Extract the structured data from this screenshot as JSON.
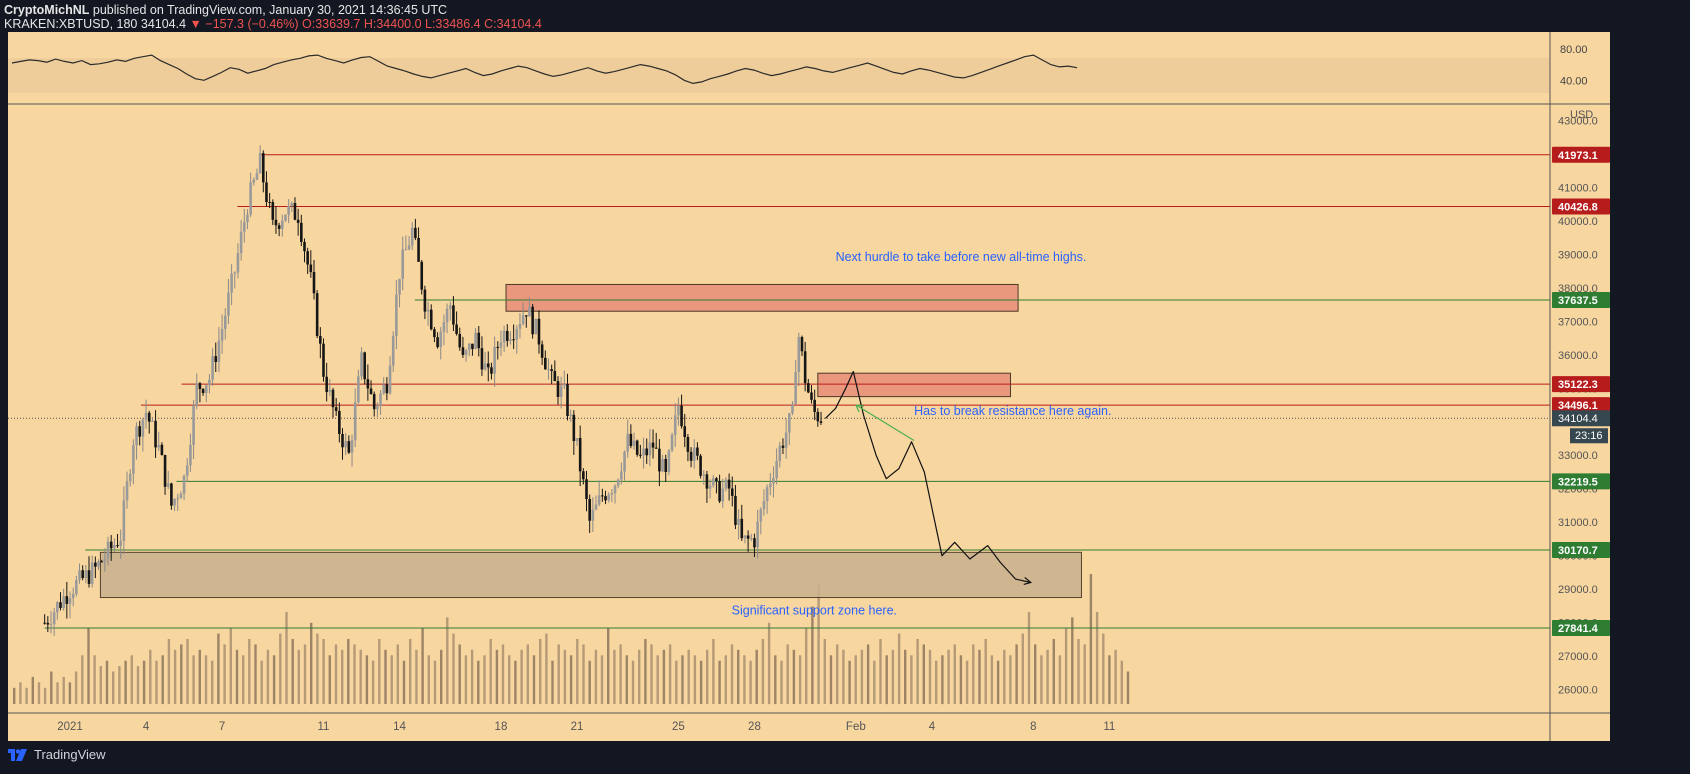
{
  "header": {
    "line1_prefix": "CryptoMichNL",
    "line1_rest": " published on TradingView.com, January 30, 2021 14:36:45 UTC",
    "symbol": "KRAKEN:XBTUSD, 180",
    "last": "34104.4",
    "change": "▼ −157.3 (−0.46%)",
    "ohlc": "O:33639.7 H:34400.0 L:33486.4 C:34104.4"
  },
  "footer": {
    "brand": "TradingView",
    "brand_icon": "tradingview-logo-icon"
  },
  "colors": {
    "background": "#f8d6a0",
    "candle": "#161616",
    "resistance": "#b71c1c",
    "support": "#2e7d32",
    "resistance_box": "#e8917a",
    "support_box": "#c9b08e",
    "annotation_text": "#2962ff"
  },
  "chart_data": {
    "type": "candlestick",
    "symbol": "KRAKEN:XBTUSD",
    "timeframe": "180",
    "y_axis": {
      "unit": "USD",
      "ticks": [
        "26000.0",
        "27000.0",
        "28000.0",
        "29000.0",
        "30000.0",
        "31000.0",
        "32000.0",
        "33000.0",
        "34000.0",
        "35000.0",
        "36000.0",
        "37000.0",
        "38000.0",
        "39000.0",
        "40000.0",
        "41000.0",
        "42000.0",
        "43000.0"
      ],
      "ylim": [
        26000,
        43000
      ]
    },
    "x_axis": {
      "ticks": [
        {
          "label": "2021",
          "day": 1
        },
        {
          "label": "4",
          "day": 4
        },
        {
          "label": "7",
          "day": 7
        },
        {
          "label": "11",
          "day": 11
        },
        {
          "label": "14",
          "day": 14
        },
        {
          "label": "18",
          "day": 18
        },
        {
          "label": "21",
          "day": 21
        },
        {
          "label": "25",
          "day": 25
        },
        {
          "label": "28",
          "day": 28
        },
        {
          "label": "Feb",
          "day": 32
        },
        {
          "label": "4",
          "day": 35
        },
        {
          "label": "8",
          "day": 39
        },
        {
          "label": "11",
          "day": 42
        }
      ]
    },
    "price_path": [
      [
        0,
        28000
      ],
      [
        1,
        29000
      ],
      [
        2,
        29600
      ],
      [
        3,
        30600
      ],
      [
        3.5,
        33500
      ],
      [
        4,
        34300
      ],
      [
        4.5,
        33200
      ],
      [
        5,
        31500
      ],
      [
        5.5,
        32300
      ],
      [
        6,
        35000
      ],
      [
        6.5,
        35300
      ],
      [
        7,
        36800
      ],
      [
        7.5,
        38500
      ],
      [
        8,
        40500
      ],
      [
        8.5,
        41700
      ],
      [
        9,
        39800
      ],
      [
        9.5,
        40300
      ],
      [
        10,
        40200
      ],
      [
        10.5,
        38200
      ],
      [
        11,
        35500
      ],
      [
        11.5,
        34000
      ],
      [
        12,
        33000
      ],
      [
        12.5,
        35800
      ],
      [
        13,
        34400
      ],
      [
        13.5,
        35200
      ],
      [
        14,
        38500
      ],
      [
        14.5,
        39700
      ],
      [
        15,
        37600
      ],
      [
        15.5,
        36500
      ],
      [
        16,
        37500
      ],
      [
        16.5,
        35800
      ],
      [
        17,
        36500
      ],
      [
        17.5,
        35300
      ],
      [
        18,
        36600
      ],
      [
        18.5,
        36800
      ],
      [
        19,
        37400
      ],
      [
        19.5,
        36500
      ],
      [
        20,
        35200
      ],
      [
        20.5,
        34800
      ],
      [
        21,
        33200
      ],
      [
        21.5,
        31000
      ],
      [
        22,
        31800
      ],
      [
        22.5,
        32200
      ],
      [
        23,
        33400
      ],
      [
        23.5,
        32900
      ],
      [
        24,
        33300
      ],
      [
        24.5,
        32300
      ],
      [
        25,
        34500
      ],
      [
        25.5,
        33100
      ],
      [
        26,
        32500
      ],
      [
        26.5,
        31900
      ],
      [
        27,
        32000
      ],
      [
        27.5,
        30400
      ],
      [
        28,
        30500
      ],
      [
        28.5,
        32000
      ],
      [
        29,
        33200
      ],
      [
        29.5,
        34200
      ],
      [
        29.7,
        36800
      ],
      [
        30,
        35300
      ],
      [
        30.3,
        34300
      ],
      [
        30.7,
        34100
      ]
    ],
    "volume": [
      3,
      4,
      3,
      5,
      4,
      3,
      6,
      4,
      5,
      4,
      6,
      9,
      14,
      9,
      7,
      8,
      6,
      7,
      8,
      9,
      7,
      8,
      10,
      8,
      9,
      12,
      10,
      11,
      12,
      9,
      10,
      9,
      8,
      13,
      11,
      14,
      10,
      9,
      12,
      11,
      8,
      10,
      9,
      13,
      17,
      12,
      10,
      11,
      15,
      13,
      12,
      9,
      11,
      10,
      12,
      11,
      10,
      9,
      8,
      12,
      10,
      9,
      11,
      8,
      12,
      10,
      14,
      9,
      8,
      10,
      16,
      13,
      11,
      9,
      10,
      8,
      9,
      12,
      10,
      11,
      9,
      8,
      10,
      11,
      9,
      12,
      13,
      8,
      11,
      10,
      9,
      12,
      11,
      8,
      10,
      9,
      14,
      10,
      11,
      9,
      8,
      10,
      12,
      11,
      9,
      10,
      11,
      8,
      9,
      10,
      9,
      8,
      10,
      12,
      8,
      9,
      11,
      10,
      9,
      8,
      10,
      12,
      15,
      9,
      8,
      11,
      10,
      9,
      14,
      18,
      22,
      12,
      9,
      11,
      10,
      8,
      9,
      10,
      11,
      8,
      12,
      9,
      10,
      13,
      10,
      9,
      12,
      11,
      10,
      8,
      9,
      10,
      11,
      9,
      8,
      11,
      10,
      12,
      9,
      8,
      10,
      9,
      11,
      13,
      17,
      11,
      9,
      10,
      12,
      9,
      14,
      16,
      12,
      11,
      24,
      17,
      13,
      9,
      10,
      8,
      6
    ],
    "vol_max": 24,
    "levels": [
      {
        "price": "41973.1",
        "value": 41973.1,
        "kind": "resistance",
        "from_day": 8.5
      },
      {
        "price": "40426.8",
        "value": 40426.8,
        "kind": "resistance",
        "from_day": 7.6
      },
      {
        "price": "37637.5",
        "value": 37637.5,
        "kind": "support",
        "from_day": 14.6
      },
      {
        "price": "35122.3",
        "value": 35122.3,
        "kind": "resistance",
        "from_day": 5.4
      },
      {
        "price": "34496.1",
        "value": 34496.1,
        "kind": "resistance",
        "from_day": 3.8
      },
      {
        "price": "32219.5",
        "value": 32219.5,
        "kind": "support",
        "from_day": 5.2
      },
      {
        "price": "30170.7",
        "value": 30170.7,
        "kind": "support",
        "from_day": 1.6
      },
      {
        "price": "27841.4",
        "value": 27841.4,
        "kind": "support",
        "from_day": 0
      }
    ],
    "current_price": {
      "value": 34104.4,
      "label": "34104.4",
      "timer": "23:16"
    },
    "zones": [
      {
        "kind": "resistance",
        "from_day": 18.2,
        "to_day": 38.4,
        "low": 37300,
        "high": 38100
      },
      {
        "kind": "resistance",
        "from_day": 30.5,
        "to_day": 38.1,
        "low": 34750,
        "high": 35450
      },
      {
        "kind": "support",
        "from_day": 2.2,
        "to_day": 40.9,
        "low": 28750,
        "high": 30100
      }
    ],
    "projection_path": [
      [
        30.8,
        34100
      ],
      [
        31.2,
        34400
      ],
      [
        31.6,
        35000
      ],
      [
        31.9,
        35500
      ],
      [
        32.3,
        34200
      ],
      [
        32.8,
        33000
      ],
      [
        33.2,
        32300
      ],
      [
        33.7,
        32600
      ],
      [
        34.2,
        33400
      ],
      [
        34.7,
        32500
      ],
      [
        35.4,
        30000
      ],
      [
        35.9,
        30400
      ],
      [
        36.5,
        29900
      ],
      [
        37.2,
        30300
      ],
      [
        37.7,
        29800
      ],
      [
        38.3,
        29300
      ],
      [
        38.9,
        29200
      ]
    ],
    "projection_arrow_to": [
      32.4,
      33200
    ],
    "annotations": [
      {
        "text": "Next hurdle to take before new all-time highs.",
        "day": 31.2,
        "price": 38800
      },
      {
        "text": "Has to break resistance here again.",
        "day": 34.3,
        "price": 34200
      },
      {
        "text": "Significant support zone here.",
        "day": 27.1,
        "price": 28250
      }
    ],
    "rsi": {
      "ticks": [
        "80.00",
        "40.00"
      ],
      "values": [
        62,
        64,
        66,
        65,
        63,
        67,
        64,
        62,
        65,
        60,
        61,
        63,
        66,
        64,
        68,
        70,
        72,
        65,
        60,
        55,
        48,
        42,
        40,
        45,
        50,
        56,
        54,
        49,
        52,
        55,
        60,
        63,
        66,
        68,
        71,
        72,
        68,
        65,
        62,
        66,
        69,
        70,
        64,
        58,
        55,
        52,
        48,
        45,
        43,
        46,
        49,
        52,
        55,
        50,
        46,
        48,
        52,
        55,
        58,
        56,
        52,
        48,
        45,
        47,
        50,
        53,
        56,
        52,
        49,
        51,
        54,
        57,
        60,
        58,
        55,
        52,
        47,
        40,
        36,
        38,
        42,
        45,
        48,
        52,
        55,
        53,
        49,
        46,
        48,
        51,
        54,
        57,
        55,
        52,
        50,
        53,
        56,
        59,
        62,
        58,
        54,
        50,
        48,
        52,
        55,
        53,
        50,
        47,
        44,
        43,
        46,
        50,
        54,
        58,
        62,
        66,
        70,
        72,
        66,
        60,
        57,
        58,
        56
      ],
      "band_low": 35,
      "band_high": 75
    }
  }
}
